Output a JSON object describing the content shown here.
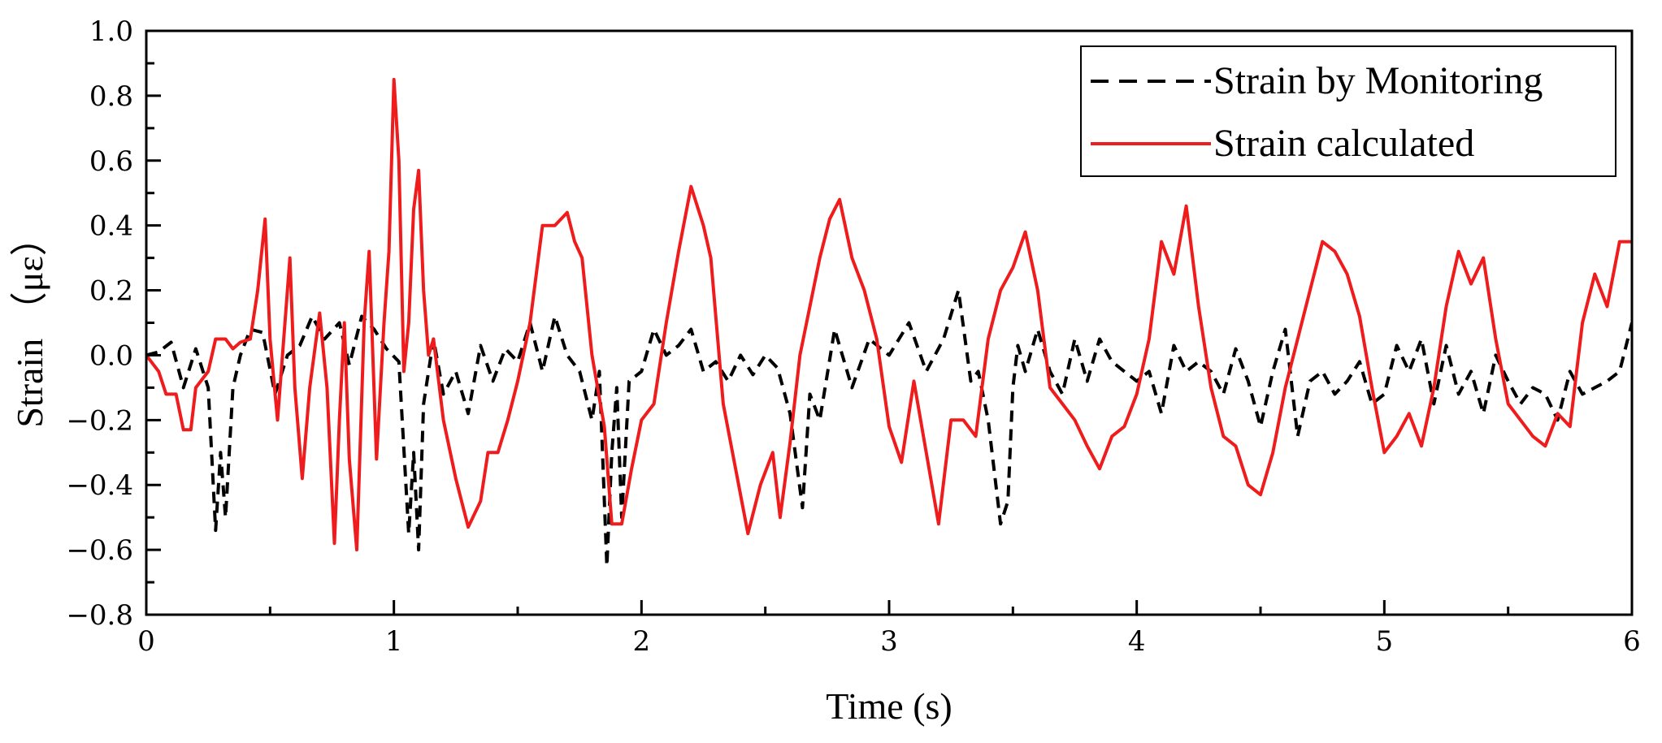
{
  "colors": {
    "monitoring": "#000000",
    "calculated": "#ee1c1c",
    "axis": "#000000"
  },
  "chart_data": {
    "type": "line",
    "title": "",
    "xlabel": "Time (s)",
    "ylabel": "Strain （με）",
    "xlim": [
      0,
      6
    ],
    "ylim": [
      -0.8,
      1.0
    ],
    "xticks": [
      0,
      1,
      2,
      3,
      4,
      5,
      6
    ],
    "xtick_labels": [
      "0",
      "1",
      "2",
      "3",
      "4",
      "5",
      "6"
    ],
    "yticks": [
      -0.8,
      -0.6,
      -0.4,
      -0.2,
      0.0,
      0.2,
      0.4,
      0.6,
      0.8,
      1.0
    ],
    "ytick_labels": [
      "−0.8",
      "−0.6",
      "−0.4",
      "−0.2",
      "0.0",
      "0.2",
      "0.4",
      "0.6",
      "0.8",
      "1.0"
    ],
    "grid": false,
    "legend_position": "top-right",
    "series": [
      {
        "name": "Strain by Monitoring",
        "style": "dashed",
        "x": [
          0,
          0.05,
          0.1,
          0.15,
          0.2,
          0.25,
          0.28,
          0.3,
          0.32,
          0.35,
          0.38,
          0.42,
          0.47,
          0.52,
          0.57,
          0.62,
          0.67,
          0.72,
          0.78,
          0.82,
          0.87,
          0.92,
          0.97,
          1.02,
          1.06,
          1.08,
          1.1,
          1.12,
          1.16,
          1.2,
          1.25,
          1.3,
          1.35,
          1.4,
          1.45,
          1.5,
          1.55,
          1.6,
          1.65,
          1.7,
          1.75,
          1.8,
          1.83,
          1.86,
          1.88,
          1.9,
          1.92,
          1.95,
          2.0,
          2.05,
          2.1,
          2.15,
          2.2,
          2.25,
          2.3,
          2.35,
          2.4,
          2.45,
          2.5,
          2.55,
          2.6,
          2.65,
          2.68,
          2.72,
          2.78,
          2.85,
          2.92,
          3.0,
          3.08,
          3.15,
          3.22,
          3.28,
          3.33,
          3.36,
          3.4,
          3.45,
          3.48,
          3.5,
          3.52,
          3.55,
          3.6,
          3.65,
          3.7,
          3.75,
          3.8,
          3.85,
          3.9,
          3.95,
          4.0,
          4.05,
          4.1,
          4.15,
          4.2,
          4.25,
          4.3,
          4.35,
          4.4,
          4.45,
          4.5,
          4.55,
          4.6,
          4.65,
          4.7,
          4.75,
          4.8,
          4.85,
          4.9,
          4.95,
          5.0,
          5.05,
          5.1,
          5.15,
          5.2,
          5.25,
          5.3,
          5.35,
          5.4,
          5.45,
          5.5,
          5.55,
          5.6,
          5.65,
          5.7,
          5.75,
          5.8,
          5.85,
          5.9,
          5.95,
          6.0
        ],
        "values": [
          0.0,
          0.01,
          0.04,
          -0.1,
          0.02,
          -0.1,
          -0.54,
          -0.3,
          -0.5,
          -0.1,
          0.0,
          0.08,
          0.07,
          -0.12,
          0.0,
          0.03,
          0.12,
          0.05,
          0.1,
          -0.03,
          0.12,
          0.08,
          0.02,
          -0.02,
          -0.55,
          -0.3,
          -0.6,
          -0.15,
          0.05,
          -0.12,
          -0.05,
          -0.18,
          0.03,
          -0.08,
          0.02,
          -0.02,
          0.1,
          -0.05,
          0.12,
          0.0,
          -0.05,
          -0.2,
          -0.05,
          -0.65,
          -0.3,
          -0.1,
          -0.5,
          -0.08,
          -0.05,
          0.08,
          0.0,
          0.03,
          0.08,
          -0.05,
          -0.02,
          -0.08,
          0.0,
          -0.06,
          0.0,
          -0.04,
          -0.18,
          -0.47,
          -0.12,
          -0.2,
          0.08,
          -0.1,
          0.05,
          0.0,
          0.1,
          -0.05,
          0.05,
          0.2,
          -0.08,
          -0.05,
          -0.2,
          -0.52,
          -0.45,
          -0.1,
          0.03,
          -0.05,
          0.08,
          -0.05,
          -0.12,
          0.05,
          -0.08,
          0.05,
          -0.02,
          -0.05,
          -0.08,
          -0.05,
          -0.18,
          0.03,
          -0.05,
          -0.02,
          -0.05,
          -0.12,
          0.02,
          -0.08,
          -0.22,
          -0.05,
          0.08,
          -0.25,
          -0.08,
          -0.05,
          -0.12,
          -0.08,
          -0.02,
          -0.15,
          -0.12,
          0.03,
          -0.05,
          0.05,
          -0.15,
          0.03,
          -0.12,
          -0.05,
          -0.18,
          0.0,
          -0.08,
          -0.15,
          -0.1,
          -0.12,
          -0.2,
          -0.05,
          -0.12,
          -0.1,
          -0.08,
          -0.05,
          0.1
        ]
      },
      {
        "name": "Strain calculated",
        "style": "solid",
        "x": [
          0,
          0.05,
          0.08,
          0.12,
          0.15,
          0.18,
          0.2,
          0.25,
          0.28,
          0.32,
          0.35,
          0.38,
          0.42,
          0.45,
          0.48,
          0.5,
          0.53,
          0.55,
          0.58,
          0.6,
          0.63,
          0.66,
          0.7,
          0.73,
          0.76,
          0.78,
          0.8,
          0.82,
          0.85,
          0.88,
          0.9,
          0.93,
          0.96,
          0.98,
          1.0,
          1.02,
          1.04,
          1.06,
          1.08,
          1.1,
          1.12,
          1.14,
          1.16,
          1.2,
          1.25,
          1.3,
          1.35,
          1.38,
          1.42,
          1.46,
          1.5,
          1.55,
          1.6,
          1.65,
          1.7,
          1.73,
          1.76,
          1.8,
          1.85,
          1.88,
          1.92,
          1.96,
          2.0,
          2.05,
          2.1,
          2.15,
          2.2,
          2.25,
          2.28,
          2.33,
          2.38,
          2.43,
          2.48,
          2.53,
          2.56,
          2.6,
          2.64,
          2.68,
          2.72,
          2.76,
          2.8,
          2.85,
          2.9,
          2.95,
          3.0,
          3.05,
          3.1,
          3.15,
          3.2,
          3.25,
          3.3,
          3.35,
          3.4,
          3.45,
          3.5,
          3.55,
          3.6,
          3.65,
          3.7,
          3.75,
          3.8,
          3.85,
          3.9,
          3.95,
          4.0,
          4.05,
          4.1,
          4.15,
          4.2,
          4.25,
          4.3,
          4.35,
          4.4,
          4.45,
          4.5,
          4.55,
          4.6,
          4.65,
          4.7,
          4.75,
          4.8,
          4.85,
          4.9,
          4.95,
          5.0,
          5.05,
          5.1,
          5.15,
          5.2,
          5.25,
          5.3,
          5.35,
          5.4,
          5.45,
          5.5,
          5.55,
          5.6,
          5.65,
          5.7,
          5.75,
          5.8,
          5.85,
          5.9,
          5.95,
          6.0
        ],
        "values": [
          0.0,
          -0.05,
          -0.12,
          -0.12,
          -0.23,
          -0.23,
          -0.1,
          -0.05,
          0.05,
          0.05,
          0.02,
          0.04,
          0.05,
          0.2,
          0.42,
          0.05,
          -0.2,
          0.0,
          0.3,
          -0.1,
          -0.38,
          -0.1,
          0.13,
          -0.1,
          -0.58,
          -0.2,
          0.1,
          -0.32,
          -0.6,
          0.1,
          0.32,
          -0.32,
          0.1,
          0.32,
          0.85,
          0.6,
          -0.05,
          0.1,
          0.45,
          0.57,
          0.2,
          0.0,
          0.05,
          -0.2,
          -0.38,
          -0.53,
          -0.45,
          -0.3,
          -0.3,
          -0.2,
          -0.08,
          0.1,
          0.4,
          0.4,
          0.44,
          0.35,
          0.3,
          0.0,
          -0.22,
          -0.52,
          -0.52,
          -0.35,
          -0.2,
          -0.15,
          0.1,
          0.32,
          0.52,
          0.4,
          0.3,
          -0.15,
          -0.35,
          -0.55,
          -0.4,
          -0.3,
          -0.5,
          -0.27,
          0.0,
          0.15,
          0.3,
          0.42,
          0.48,
          0.3,
          0.2,
          0.05,
          -0.22,
          -0.33,
          -0.08,
          -0.3,
          -0.52,
          -0.2,
          -0.2,
          -0.25,
          0.05,
          0.2,
          0.27,
          0.38,
          0.2,
          -0.1,
          -0.15,
          -0.2,
          -0.28,
          -0.35,
          -0.25,
          -0.22,
          -0.12,
          0.05,
          0.35,
          0.25,
          0.46,
          0.15,
          -0.1,
          -0.25,
          -0.28,
          -0.4,
          -0.43,
          -0.3,
          -0.1,
          0.05,
          0.2,
          0.35,
          0.32,
          0.25,
          0.12,
          -0.1,
          -0.3,
          -0.25,
          -0.18,
          -0.28,
          -0.1,
          0.15,
          0.32,
          0.22,
          0.3,
          0.05,
          -0.15,
          -0.2,
          -0.25,
          -0.28,
          -0.18,
          -0.22,
          0.1,
          0.25,
          0.15,
          0.35,
          0.35
        ]
      }
    ]
  }
}
